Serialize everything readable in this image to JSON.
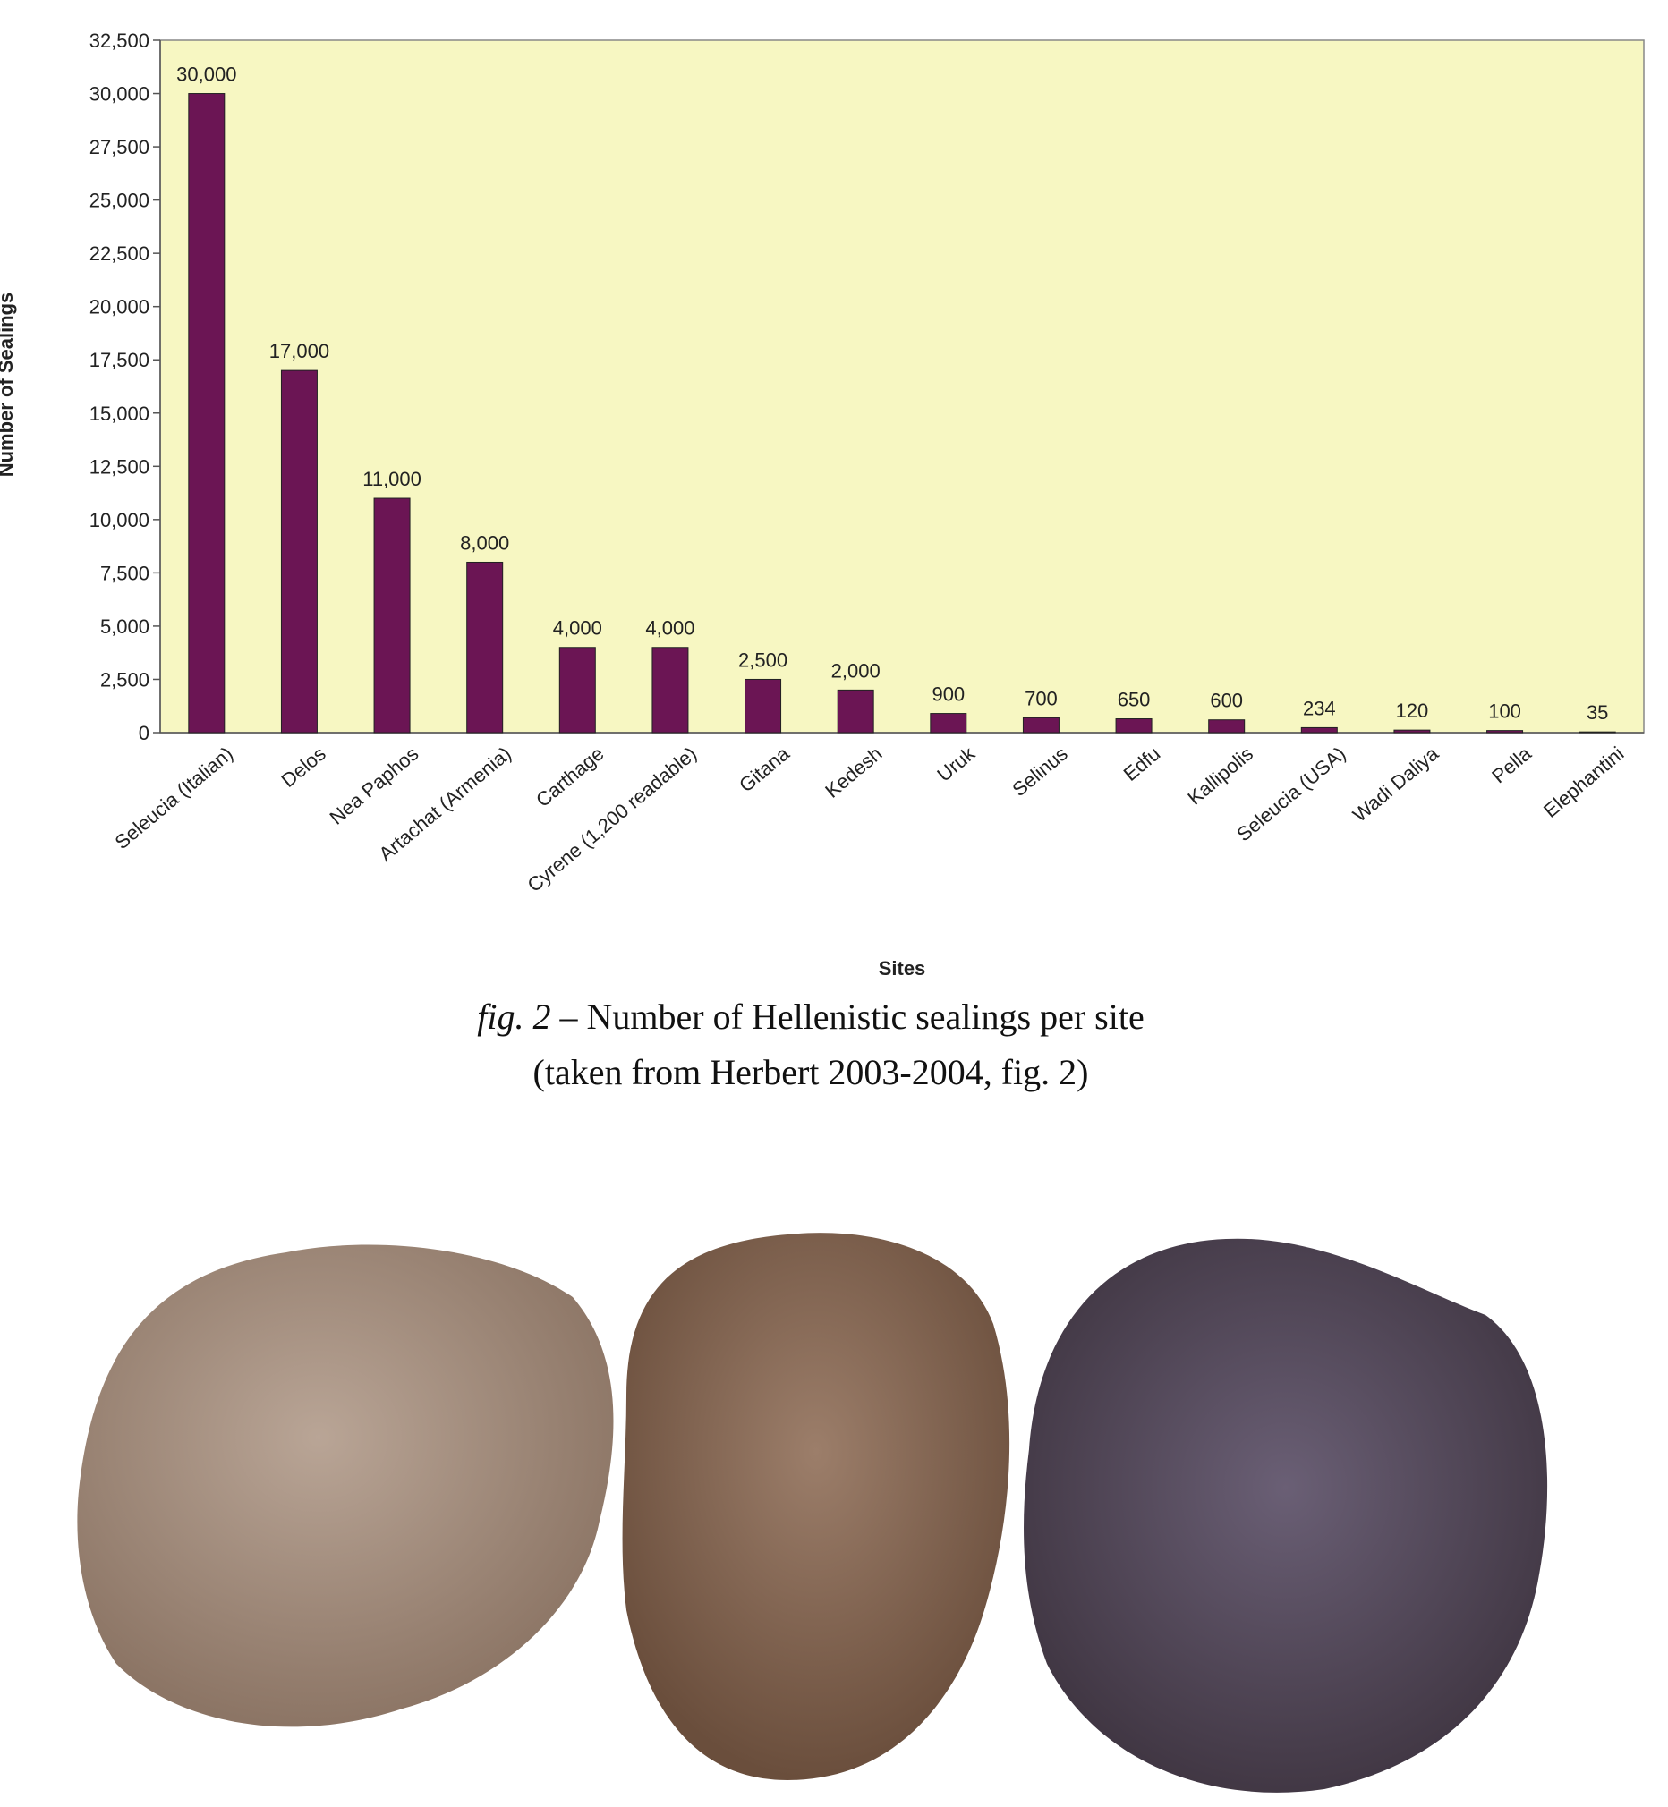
{
  "chart_data": {
    "type": "bar",
    "y_label": "Number of Sealings",
    "x_label": "Sites",
    "categories": [
      "Seleucia (Italian)",
      "Delos",
      "Nea Paphos",
      "Artachat (Armenia)",
      "Carthage",
      "Cyrene (1,200 readable)",
      "Gitana",
      "Kedesh",
      "Uruk",
      "Selinus",
      "Edfu",
      "Kallipolis",
      "Seleucia (USA)",
      "Wadi Daliya",
      "Pella",
      "Elephantini"
    ],
    "values": [
      30000,
      17000,
      11000,
      8000,
      4000,
      4000,
      2500,
      2000,
      900,
      700,
      650,
      600,
      234,
      120,
      100,
      35
    ],
    "value_labels": [
      "30,000",
      "17,000",
      "11,000",
      "8,000",
      "4,000",
      "4,000",
      "2,500",
      "2,000",
      "900",
      "700",
      "650",
      "600",
      "234",
      "120",
      "100",
      "35"
    ],
    "color": "#6b1554",
    "ylim": [
      0,
      32500
    ],
    "yticks": [
      0,
      {
        "value": 2500,
        "label": "2,500"
      },
      {
        "value": 5000,
        "label": "5,000"
      },
      {
        "value": 7500,
        "label": "7,500"
      },
      {
        "value": 10000,
        "label": "10,000"
      },
      {
        "value": 12500,
        "label": "12,500"
      },
      {
        "value": 15000,
        "label": "15,000"
      },
      {
        "value": 17500,
        "label": "17,500"
      },
      {
        "value": 20000,
        "label": "20,000"
      },
      {
        "value": 22500,
        "label": "22,500"
      },
      {
        "value": 25000,
        "label": "25,000"
      },
      {
        "value": 27500,
        "label": "27,500"
      },
      {
        "value": 30000,
        "label": "30,000"
      },
      {
        "value": 32500,
        "label": "32,500"
      }
    ],
    "grid": false
  },
  "caption": {
    "label": "fig. 2",
    "title": "– Number of Hellenistic sealings per site",
    "source": "(taken from Herbert 2003-2004, fig. 2)"
  }
}
